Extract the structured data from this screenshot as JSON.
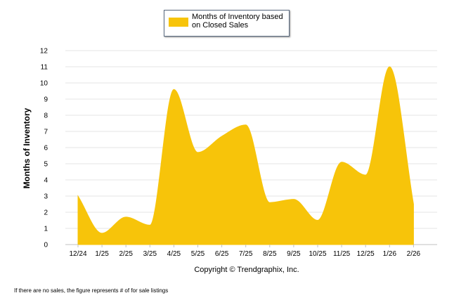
{
  "chart_data": {
    "type": "area",
    "legend": {
      "label": "Months of Inventory based on Closed Sales",
      "placement": "top-center"
    },
    "categories": [
      "12/24",
      "1/25",
      "2/25",
      "3/25",
      "4/25",
      "5/25",
      "6/25",
      "7/25",
      "8/25",
      "9/25",
      "10/25",
      "11/25",
      "12/25",
      "1/26",
      "2/26"
    ],
    "series": [
      {
        "name": "Months of Inventory based on Closed Sales",
        "values": [
          3.0,
          0.7,
          1.7,
          1.2,
          9.6,
          5.7,
          6.7,
          7.4,
          2.6,
          2.8,
          1.5,
          5.1,
          4.3,
          11.0,
          2.5
        ]
      }
    ],
    "ylabel": "Months of Inventory",
    "xlabel": "Copyright © Trendgraphix, Inc.",
    "ylim": [
      0,
      12
    ],
    "yticks": [
      0,
      1,
      2,
      3,
      4,
      5,
      6,
      7,
      8,
      9,
      10,
      11,
      12
    ],
    "grid": true
  },
  "colors": {
    "fill": "#F7C40A",
    "grid": "#e6e6e6",
    "axis": "#c0c0c0"
  },
  "footnote": "If there are no sales, the figure represents # of for sale listings"
}
